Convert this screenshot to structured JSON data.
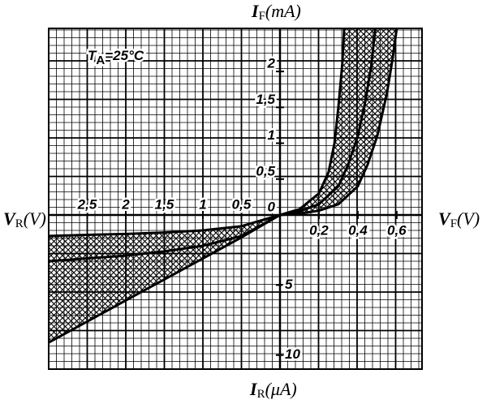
{
  "chart_data": [
    {
      "type": "line",
      "quadrant": "upper-right",
      "x_label": {
        "symbol": "V",
        "subscript": "F",
        "unit": "(V)"
      },
      "y_label": {
        "symbol": "I",
        "subscript": "F",
        "unit": "(mA)"
      },
      "annotation": {
        "symbol": "T",
        "subscript": "A",
        "text": "=25°C"
      },
      "xlim": [
        0,
        0.73
      ],
      "ylim": [
        0,
        2.6
      ],
      "xticks": [
        {
          "value": 0.2,
          "label": "0,2"
        },
        {
          "value": 0.4,
          "label": "0,4"
        },
        {
          "value": 0.6,
          "label": "0,6"
        }
      ],
      "yticks": [
        0,
        {
          "value": 0.5,
          "label": "0,5"
        },
        1,
        {
          "value": 1.5,
          "label": "1,5"
        },
        2
      ],
      "hatch": true,
      "color": "#000000",
      "series": [
        {
          "x": [
            0,
            0.1,
            0.2,
            0.25,
            0.28,
            0.3,
            0.32,
            0.33
          ],
          "values": [
            0,
            0.08,
            0.3,
            0.6,
            1.0,
            1.5,
            2.1,
            2.6
          ]
        },
        {
          "x": [
            0,
            0.1,
            0.2,
            0.3,
            0.35,
            0.4,
            0.44,
            0.47,
            0.49
          ],
          "values": [
            0,
            0.05,
            0.15,
            0.4,
            0.7,
            1.1,
            1.6,
            2.1,
            2.6
          ]
        },
        {
          "x": [
            0,
            0.1,
            0.2,
            0.3,
            0.4,
            0.45,
            0.5,
            0.55,
            0.58,
            0.6
          ],
          "values": [
            0,
            0.02,
            0.06,
            0.15,
            0.4,
            0.7,
            1.1,
            1.7,
            2.2,
            2.6
          ]
        }
      ]
    },
    {
      "type": "line",
      "quadrant": "lower-left",
      "x_label": {
        "symbol": "V",
        "subscript": "R",
        "unit": "(V)"
      },
      "y_label": {
        "symbol": "I",
        "subscript": "R",
        "unit": "(μA)"
      },
      "xlim": [
        0,
        3
      ],
      "ylim": [
        0,
        11
      ],
      "xticks": [
        {
          "value": 0.5,
          "label": "0,5"
        },
        1,
        {
          "value": 1.5,
          "label": "1,5"
        },
        2,
        {
          "value": 2.5,
          "label": "2,5"
        }
      ],
      "yticks": [
        5,
        10
      ],
      "hatch": true,
      "color": "#000000",
      "series": [
        {
          "x": [
            0,
            0.5,
            1,
            1.5,
            2,
            2.5,
            3
          ],
          "values": [
            0,
            0.8,
            1.1,
            1.25,
            1.35,
            1.42,
            1.5
          ]
        },
        {
          "x": [
            0,
            0.5,
            1,
            1.5,
            2,
            2.5,
            3
          ],
          "values": [
            0,
            1.5,
            2.2,
            2.6,
            2.9,
            3.1,
            3.3
          ]
        },
        {
          "x": [
            0,
            0.5,
            1,
            1.5,
            2,
            2.5,
            3
          ],
          "values": [
            0,
            1.6,
            3.1,
            4.6,
            6.1,
            7.6,
            9.1
          ]
        }
      ]
    }
  ]
}
